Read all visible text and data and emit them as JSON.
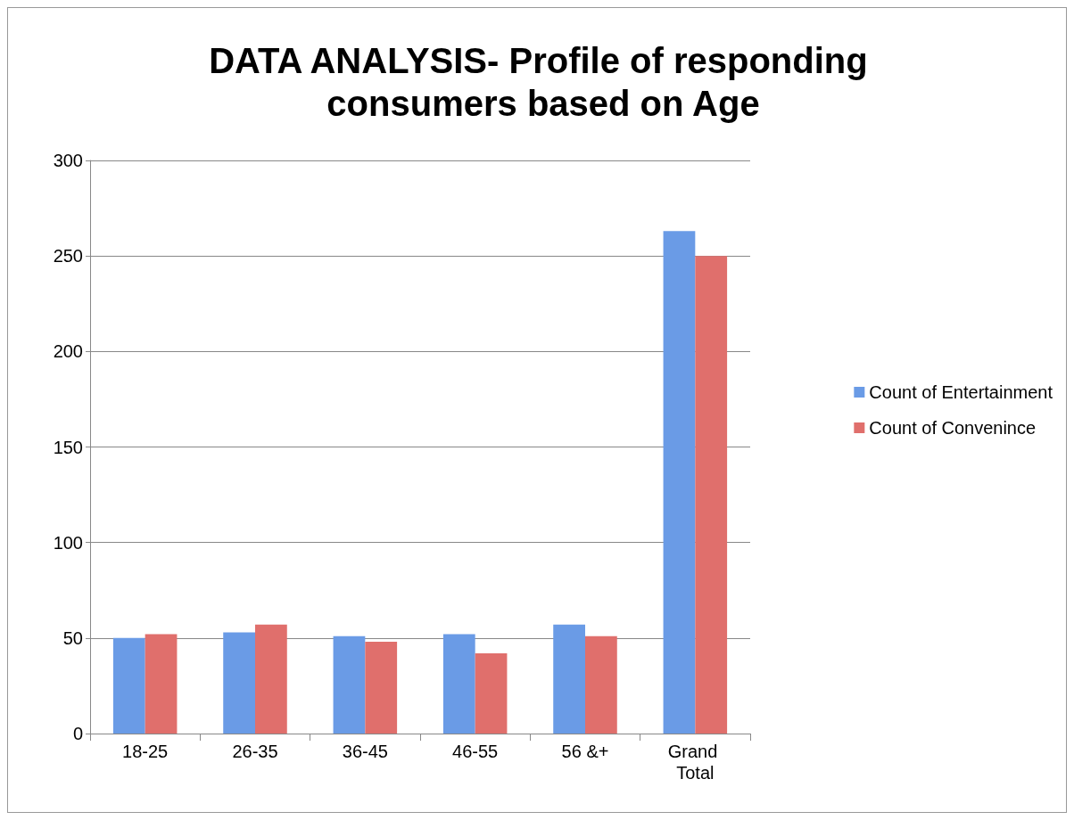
{
  "chart_data": {
    "type": "bar",
    "title": "DATA ANALYSIS- Profile of responding consumers based on Age",
    "categories": [
      "18-25",
      "26-35",
      "36-45",
      "46-55",
      "56 &+",
      "Grand Total"
    ],
    "series": [
      {
        "name": "Count of Entertainment",
        "color": "#6a9be6",
        "values": [
          50,
          53,
          51,
          52,
          57,
          263
        ]
      },
      {
        "name": "Count of Convenince",
        "color": "#e06f6c",
        "values": [
          52,
          57,
          48,
          42,
          51,
          250
        ]
      }
    ],
    "ylim": [
      0,
      300
    ],
    "yticks": [
      0,
      50,
      100,
      150,
      200,
      250,
      300
    ],
    "grid": "y",
    "legend": "right"
  }
}
